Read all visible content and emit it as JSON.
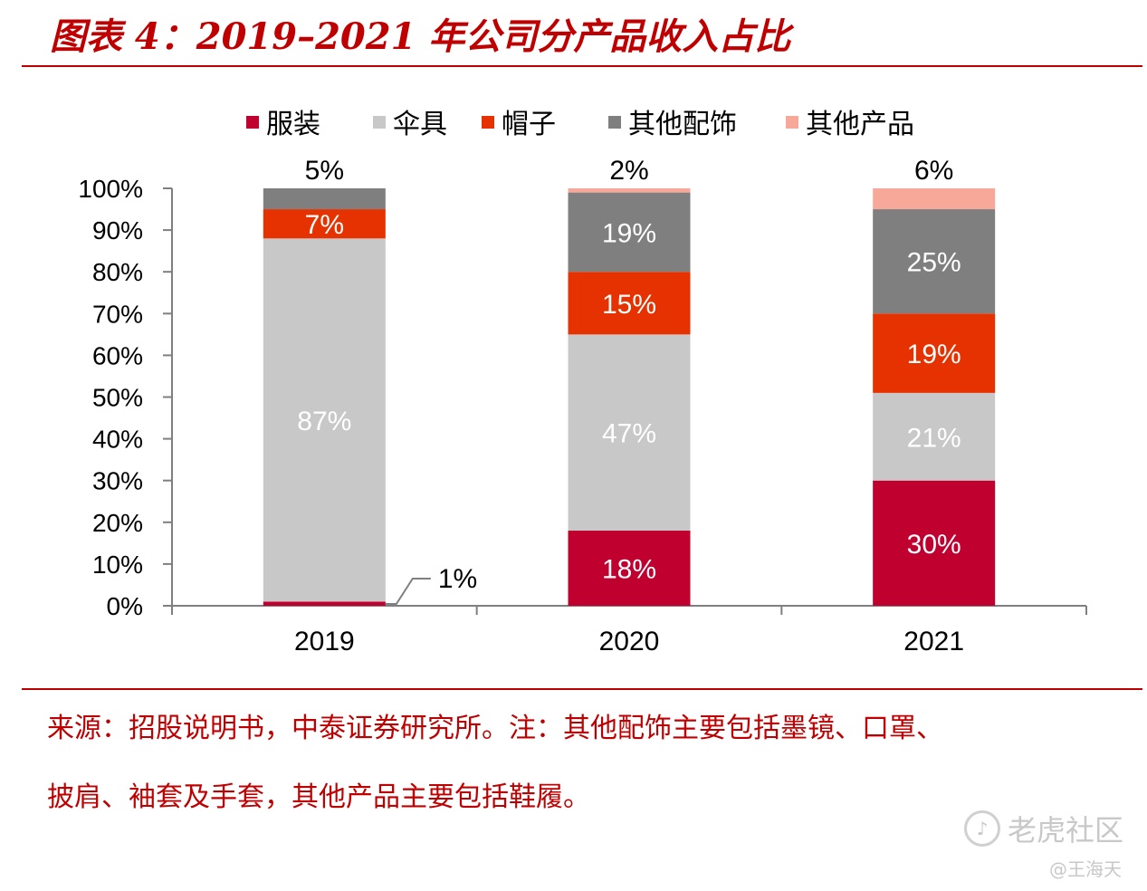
{
  "header": {
    "title": "图表 4：2019–2021 年公司分产品收入占比"
  },
  "chart_data": {
    "type": "bar",
    "stacked": true,
    "categories": [
      "2019",
      "2020",
      "2021"
    ],
    "series": [
      {
        "name": "服装",
        "color": "#c0002f",
        "values": [
          1,
          18,
          30
        ]
      },
      {
        "name": "伞具",
        "color": "#c8c8c8",
        "values": [
          87,
          47,
          21
        ]
      },
      {
        "name": "帽子",
        "color": "#e63200",
        "values": [
          7,
          15,
          19
        ]
      },
      {
        "name": "其他配饰",
        "color": "#7f7f7f",
        "values": [
          5,
          19,
          25
        ]
      },
      {
        "name": "其他产品",
        "color": "#f8a898",
        "values": [
          0,
          2,
          6
        ]
      }
    ],
    "data_labels": [
      [
        "1%",
        "87%",
        "7%",
        "5%",
        ""
      ],
      [
        "18%",
        "47%",
        "15%",
        "19%",
        "2%"
      ],
      [
        "30%",
        "21%",
        "19%",
        "25%",
        "6%"
      ]
    ],
    "ylim": [
      0,
      100
    ],
    "yticks": [
      "0%",
      "10%",
      "20%",
      "30%",
      "40%",
      "50%",
      "60%",
      "70%",
      "80%",
      "90%",
      "100%"
    ],
    "legend_position": "top"
  },
  "source_note": {
    "line1": "来源：招股说明书，中泰证券研究所。注：其他配饰主要包括墨镜、口罩、",
    "line2": "披肩、袖套及手套，其他产品主要包括鞋履。"
  },
  "watermark": {
    "brand": "老虎社区",
    "author": "@王海天"
  }
}
